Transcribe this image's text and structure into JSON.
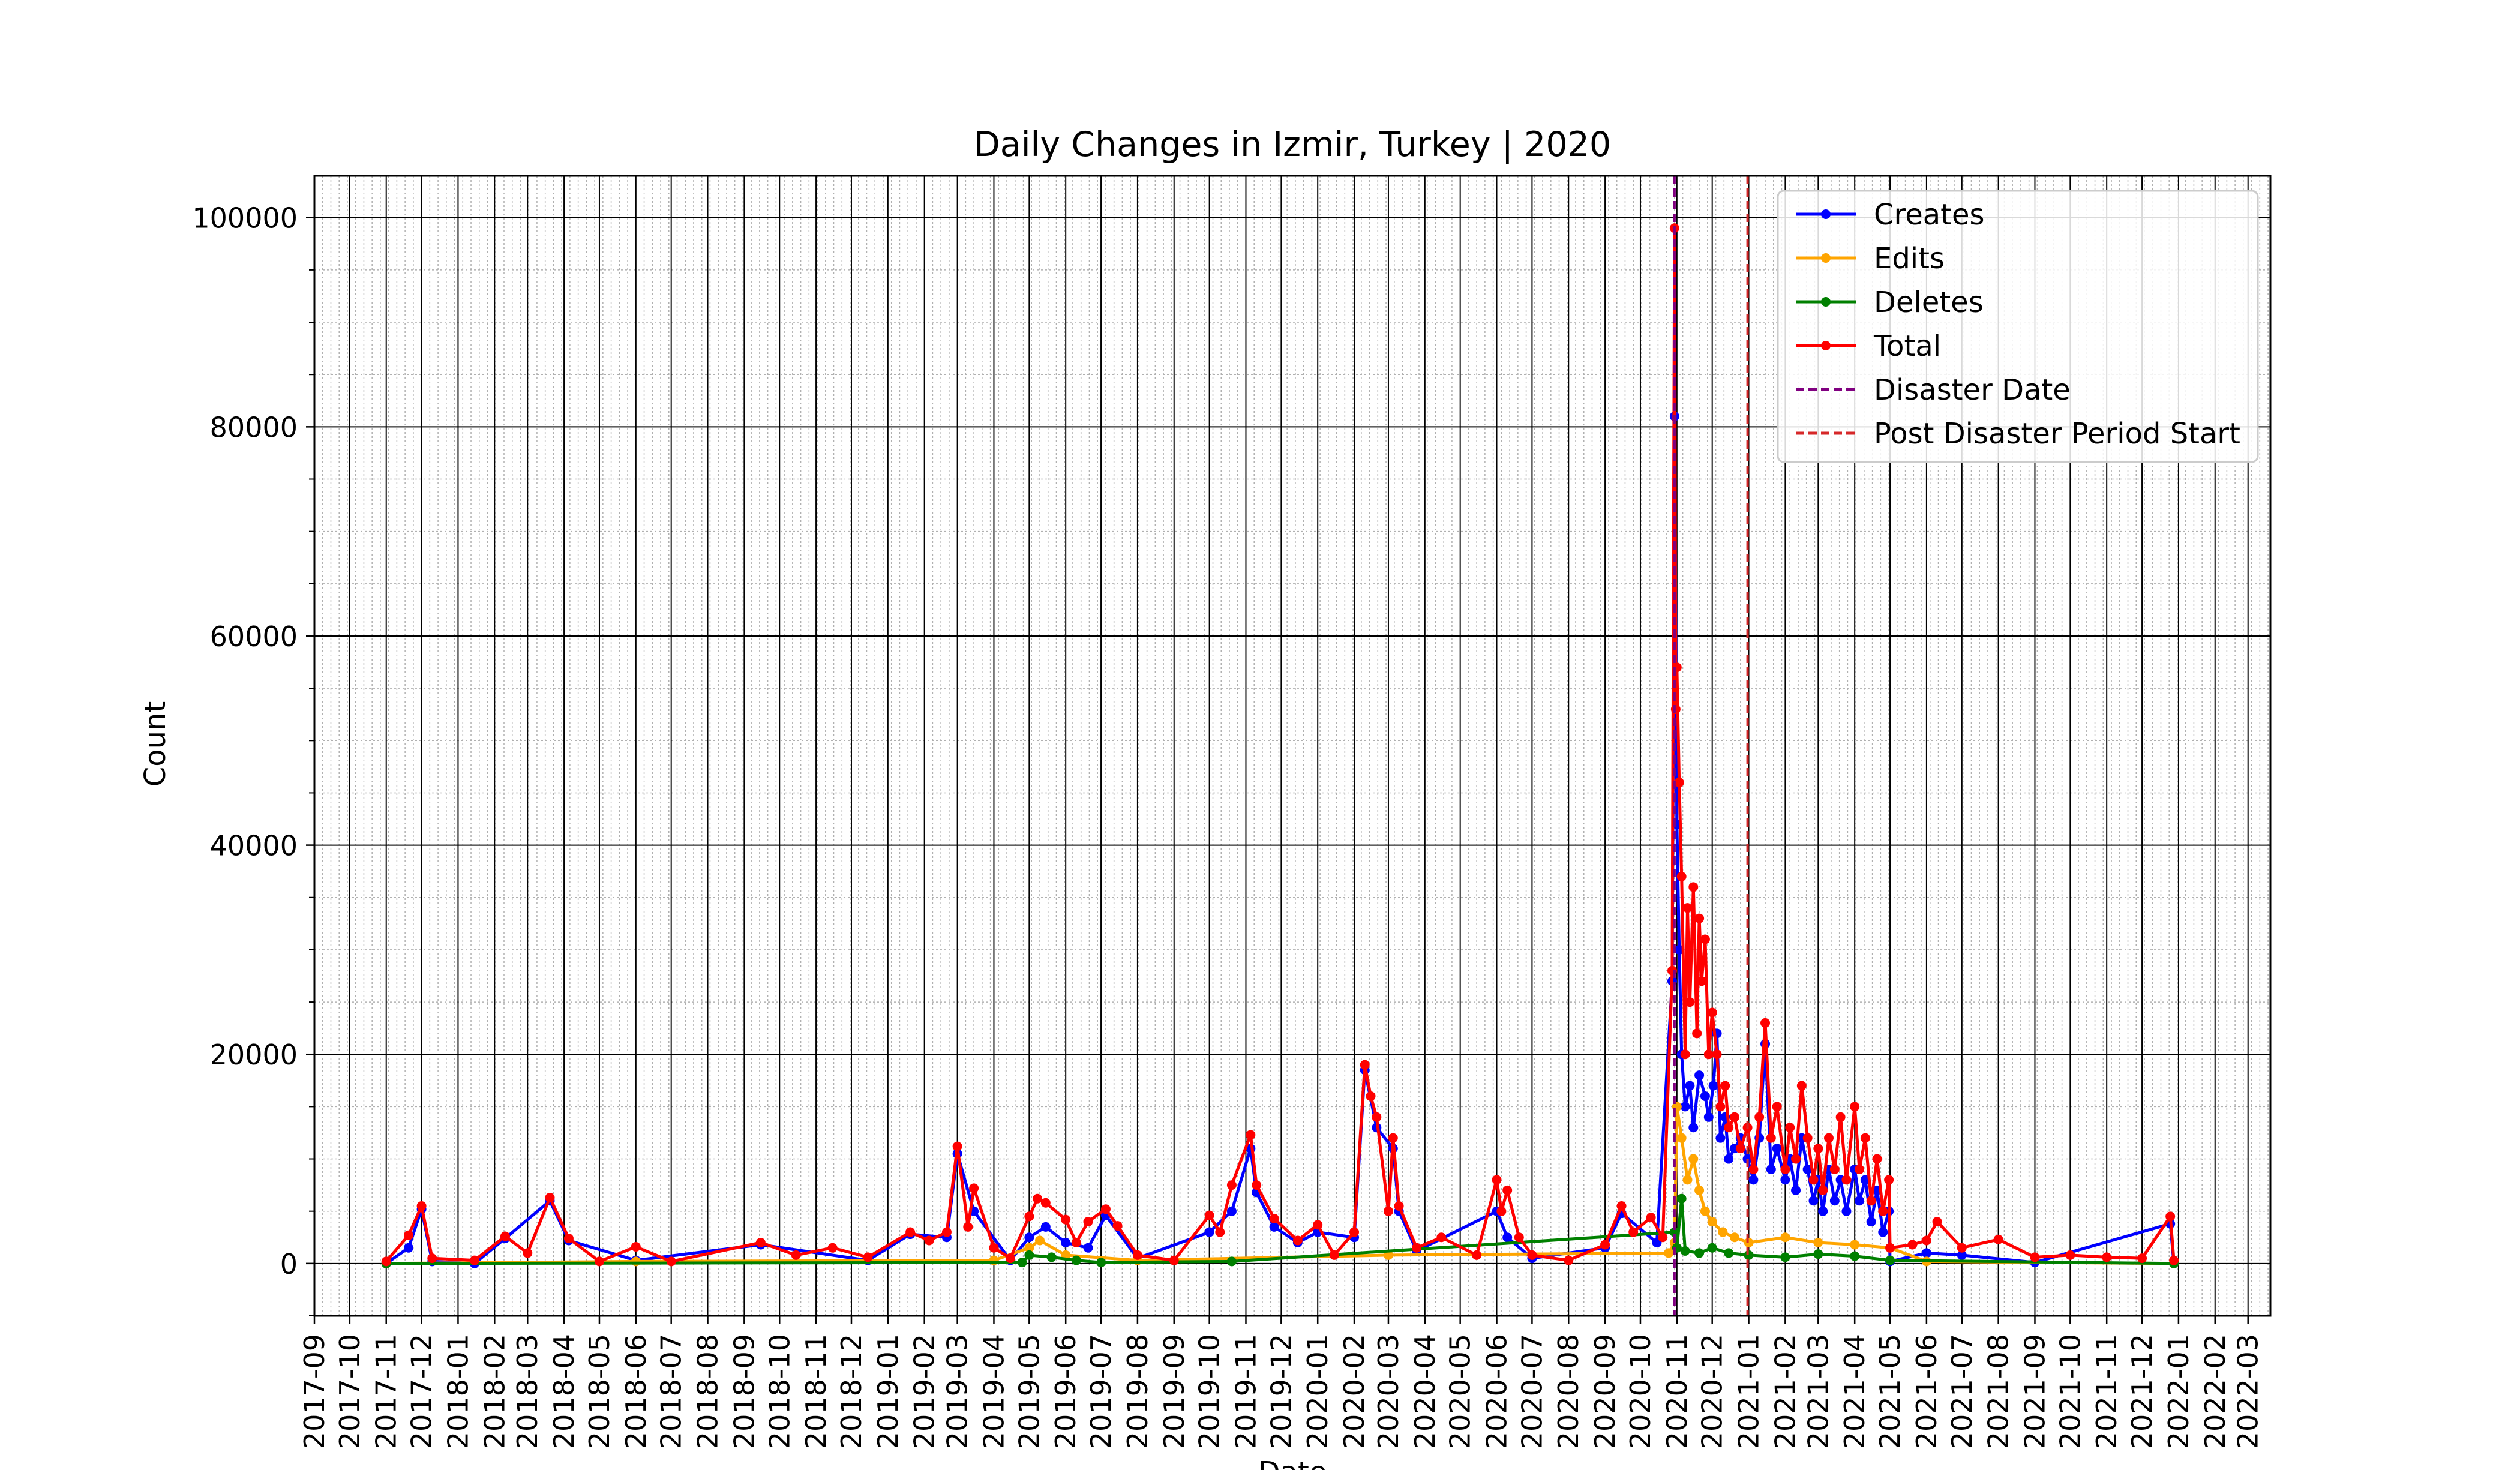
{
  "chart_data": {
    "type": "line",
    "title": "Daily Changes in Izmir, Turkey | 2020",
    "xlabel": "Date",
    "ylabel": "Count",
    "xlim": [
      "2017-09-01",
      "2022-03-20"
    ],
    "ylim": [
      -5000,
      104000
    ],
    "x_ticks": [
      "2017-09",
      "2017-10",
      "2017-11",
      "2017-12",
      "2018-01",
      "2018-02",
      "2018-03",
      "2018-04",
      "2018-05",
      "2018-06",
      "2018-07",
      "2018-08",
      "2018-09",
      "2018-10",
      "2018-11",
      "2018-12",
      "2019-01",
      "2019-02",
      "2019-03",
      "2019-04",
      "2019-05",
      "2019-06",
      "2019-07",
      "2019-08",
      "2019-09",
      "2019-10",
      "2019-11",
      "2019-12",
      "2020-01",
      "2020-02",
      "2020-03",
      "2020-04",
      "2020-05",
      "2020-06",
      "2020-07",
      "2020-08",
      "2020-09",
      "2020-10",
      "2020-11",
      "2020-12",
      "2021-01",
      "2021-02",
      "2021-03",
      "2021-04",
      "2021-05",
      "2021-06",
      "2021-07",
      "2021-08",
      "2021-09",
      "2021-10",
      "2021-11",
      "2021-12",
      "2022-01",
      "2022-02",
      "2022-03"
    ],
    "y_ticks": [
      0,
      20000,
      40000,
      60000,
      80000,
      100000
    ],
    "grid": true,
    "legend_position": "top-right",
    "vlines": [
      {
        "name": "Disaster Date",
        "x": "2020-10-30",
        "color": "#800080",
        "style": "dashed"
      },
      {
        "name": "Post Disaster Period Start",
        "x": "2020-12-31",
        "color": "#d62728",
        "style": "dashed"
      }
    ],
    "series": [
      {
        "name": "Creates",
        "color": "#0000ff",
        "points": [
          [
            "2017-11-01",
            0
          ],
          [
            "2017-11-20",
            1500
          ],
          [
            "2017-12-01",
            5200
          ],
          [
            "2017-12-10",
            200
          ],
          [
            "2018-01-15",
            0
          ],
          [
            "2018-02-10",
            2400
          ],
          [
            "2018-03-20",
            6000
          ],
          [
            "2018-04-05",
            2200
          ],
          [
            "2018-06-01",
            300
          ],
          [
            "2018-09-15",
            1800
          ],
          [
            "2018-12-15",
            300
          ],
          [
            "2019-01-20",
            2800
          ],
          [
            "2019-02-20",
            2500
          ],
          [
            "2019-03-01",
            10500
          ],
          [
            "2019-03-15",
            5000
          ],
          [
            "2019-04-15",
            300
          ],
          [
            "2019-05-01",
            2500
          ],
          [
            "2019-05-15",
            3500
          ],
          [
            "2019-06-01",
            2000
          ],
          [
            "2019-06-20",
            1500
          ],
          [
            "2019-07-05",
            4600
          ],
          [
            "2019-08-01",
            500
          ],
          [
            "2019-10-01",
            3000
          ],
          [
            "2019-10-20",
            5000
          ],
          [
            "2019-11-05",
            11000
          ],
          [
            "2019-11-10",
            6800
          ],
          [
            "2019-11-25",
            3500
          ],
          [
            "2019-12-15",
            2000
          ],
          [
            "2020-01-01",
            3000
          ],
          [
            "2020-02-01",
            2500
          ],
          [
            "2020-02-10",
            18500
          ],
          [
            "2020-02-20",
            13000
          ],
          [
            "2020-03-05",
            11000
          ],
          [
            "2020-03-10",
            5000
          ],
          [
            "2020-03-25",
            1200
          ],
          [
            "2020-06-01",
            5000
          ],
          [
            "2020-06-10",
            2500
          ],
          [
            "2020-07-01",
            500
          ],
          [
            "2020-09-01",
            1500
          ],
          [
            "2020-09-15",
            4800
          ],
          [
            "2020-10-15",
            2000
          ],
          [
            "2020-10-28",
            27000
          ],
          [
            "2020-10-30",
            81000
          ],
          [
            "2020-11-01",
            42000
          ],
          [
            "2020-11-03",
            30000
          ],
          [
            "2020-11-05",
            20000
          ],
          [
            "2020-11-08",
            15000
          ],
          [
            "2020-11-12",
            17000
          ],
          [
            "2020-11-15",
            13000
          ],
          [
            "2020-11-20",
            18000
          ],
          [
            "2020-11-25",
            16000
          ],
          [
            "2020-11-28",
            14000
          ],
          [
            "2020-12-02",
            17000
          ],
          [
            "2020-12-05",
            22000
          ],
          [
            "2020-12-08",
            12000
          ],
          [
            "2020-12-12",
            14000
          ],
          [
            "2020-12-15",
            10000
          ],
          [
            "2020-12-20",
            11000
          ],
          [
            "2020-12-25",
            12000
          ],
          [
            "2020-12-31",
            10000
          ],
          [
            "2021-01-05",
            8000
          ],
          [
            "2021-01-10",
            12000
          ],
          [
            "2021-01-15",
            21000
          ],
          [
            "2021-01-20",
            9000
          ],
          [
            "2021-01-25",
            11000
          ],
          [
            "2021-02-01",
            8000
          ],
          [
            "2021-02-05",
            10000
          ],
          [
            "2021-02-10",
            7000
          ],
          [
            "2021-02-15",
            12000
          ],
          [
            "2021-02-20",
            9000
          ],
          [
            "2021-02-25",
            6000
          ],
          [
            "2021-03-01",
            8000
          ],
          [
            "2021-03-05",
            5000
          ],
          [
            "2021-03-10",
            9000
          ],
          [
            "2021-03-15",
            6000
          ],
          [
            "2021-03-20",
            8000
          ],
          [
            "2021-03-25",
            5000
          ],
          [
            "2021-04-01",
            9000
          ],
          [
            "2021-04-05",
            6000
          ],
          [
            "2021-04-10",
            8000
          ],
          [
            "2021-04-15",
            4000
          ],
          [
            "2021-04-20",
            7000
          ],
          [
            "2021-04-25",
            3000
          ],
          [
            "2021-04-30",
            5000
          ],
          [
            "2021-05-01",
            200
          ],
          [
            "2021-06-01",
            1000
          ],
          [
            "2021-07-01",
            800
          ],
          [
            "2021-09-01",
            100
          ],
          [
            "2021-12-25",
            3800
          ],
          [
            "2021-12-28",
            0
          ]
        ]
      },
      {
        "name": "Edits",
        "color": "#ffa500",
        "points": [
          [
            "2017-11-01",
            0
          ],
          [
            "2018-06-01",
            200
          ],
          [
            "2019-04-01",
            300
          ],
          [
            "2019-05-01",
            1500
          ],
          [
            "2019-05-10",
            2200
          ],
          [
            "2019-06-01",
            800
          ],
          [
            "2019-08-01",
            300
          ],
          [
            "2020-03-01",
            800
          ],
          [
            "2020-10-25",
            1000
          ],
          [
            "2020-10-30",
            2000
          ],
          [
            "2020-11-01",
            15000
          ],
          [
            "2020-11-05",
            12000
          ],
          [
            "2020-11-10",
            8000
          ],
          [
            "2020-11-15",
            10000
          ],
          [
            "2020-11-20",
            7000
          ],
          [
            "2020-11-25",
            5000
          ],
          [
            "2020-12-01",
            4000
          ],
          [
            "2020-12-10",
            3000
          ],
          [
            "2020-12-20",
            2500
          ],
          [
            "2021-01-01",
            2000
          ],
          [
            "2021-02-01",
            2500
          ],
          [
            "2021-03-01",
            2000
          ],
          [
            "2021-04-01",
            1800
          ],
          [
            "2021-05-01",
            1500
          ],
          [
            "2021-06-01",
            200
          ],
          [
            "2021-12-28",
            0
          ]
        ]
      },
      {
        "name": "Deletes",
        "color": "#008000",
        "points": [
          [
            "2017-11-01",
            0
          ],
          [
            "2019-04-25",
            100
          ],
          [
            "2019-05-01",
            800
          ],
          [
            "2019-05-20",
            600
          ],
          [
            "2019-06-10",
            300
          ],
          [
            "2019-07-01",
            100
          ],
          [
            "2019-10-20",
            200
          ],
          [
            "2020-10-30",
            3000
          ],
          [
            "2020-11-01",
            1500
          ],
          [
            "2020-11-05",
            6200
          ],
          [
            "2020-11-08",
            1200
          ],
          [
            "2020-11-20",
            1000
          ],
          [
            "2020-12-01",
            1500
          ],
          [
            "2020-12-15",
            1000
          ],
          [
            "2021-01-01",
            800
          ],
          [
            "2021-02-01",
            600
          ],
          [
            "2021-03-01",
            900
          ],
          [
            "2021-04-01",
            700
          ],
          [
            "2021-05-01",
            300
          ],
          [
            "2021-12-28",
            0
          ]
        ]
      },
      {
        "name": "Total",
        "color": "#ff0000",
        "points": [
          [
            "2017-11-01",
            200
          ],
          [
            "2017-11-20",
            2700
          ],
          [
            "2017-12-01",
            5500
          ],
          [
            "2017-12-10",
            500
          ],
          [
            "2018-01-15",
            300
          ],
          [
            "2018-02-10",
            2600
          ],
          [
            "2018-03-01",
            1000
          ],
          [
            "2018-03-20",
            6300
          ],
          [
            "2018-04-05",
            2400
          ],
          [
            "2018-05-01",
            200
          ],
          [
            "2018-06-01",
            1600
          ],
          [
            "2018-07-01",
            200
          ],
          [
            "2018-09-15",
            2000
          ],
          [
            "2018-10-15",
            800
          ],
          [
            "2018-11-15",
            1500
          ],
          [
            "2018-12-15",
            600
          ],
          [
            "2019-01-20",
            3000
          ],
          [
            "2019-02-05",
            2200
          ],
          [
            "2019-02-20",
            3000
          ],
          [
            "2019-03-01",
            11200
          ],
          [
            "2019-03-10",
            3500
          ],
          [
            "2019-03-15",
            7200
          ],
          [
            "2019-04-01",
            1500
          ],
          [
            "2019-04-15",
            500
          ],
          [
            "2019-05-01",
            4500
          ],
          [
            "2019-05-08",
            6200
          ],
          [
            "2019-05-15",
            5800
          ],
          [
            "2019-06-01",
            4200
          ],
          [
            "2019-06-10",
            2000
          ],
          [
            "2019-06-20",
            4000
          ],
          [
            "2019-07-05",
            5200
          ],
          [
            "2019-07-15",
            3600
          ],
          [
            "2019-08-01",
            800
          ],
          [
            "2019-09-01",
            300
          ],
          [
            "2019-10-01",
            4600
          ],
          [
            "2019-10-10",
            3000
          ],
          [
            "2019-10-20",
            7500
          ],
          [
            "2019-11-05",
            12300
          ],
          [
            "2019-11-10",
            7500
          ],
          [
            "2019-11-25",
            4300
          ],
          [
            "2019-12-15",
            2200
          ],
          [
            "2020-01-01",
            3700
          ],
          [
            "2020-01-15",
            800
          ],
          [
            "2020-02-01",
            3000
          ],
          [
            "2020-02-10",
            19000
          ],
          [
            "2020-02-15",
            16000
          ],
          [
            "2020-02-20",
            14000
          ],
          [
            "2020-03-01",
            5000
          ],
          [
            "2020-03-05",
            12000
          ],
          [
            "2020-03-10",
            5500
          ],
          [
            "2020-03-25",
            1500
          ],
          [
            "2020-04-15",
            2500
          ],
          [
            "2020-05-15",
            800
          ],
          [
            "2020-06-01",
            8000
          ],
          [
            "2020-06-05",
            5000
          ],
          [
            "2020-06-10",
            7000
          ],
          [
            "2020-06-20",
            2500
          ],
          [
            "2020-07-01",
            800
          ],
          [
            "2020-08-01",
            300
          ],
          [
            "2020-09-01",
            1800
          ],
          [
            "2020-09-15",
            5500
          ],
          [
            "2020-09-25",
            3000
          ],
          [
            "2020-10-10",
            4400
          ],
          [
            "2020-10-20",
            2500
          ],
          [
            "2020-10-28",
            28000
          ],
          [
            "2020-10-30",
            99000
          ],
          [
            "2020-10-31",
            53000
          ],
          [
            "2020-11-01",
            57000
          ],
          [
            "2020-11-03",
            46000
          ],
          [
            "2020-11-05",
            37000
          ],
          [
            "2020-11-08",
            20000
          ],
          [
            "2020-11-10",
            34000
          ],
          [
            "2020-11-12",
            25000
          ],
          [
            "2020-11-15",
            36000
          ],
          [
            "2020-11-18",
            22000
          ],
          [
            "2020-11-20",
            33000
          ],
          [
            "2020-11-22",
            27000
          ],
          [
            "2020-11-25",
            31000
          ],
          [
            "2020-11-28",
            20000
          ],
          [
            "2020-12-01",
            24000
          ],
          [
            "2020-12-05",
            20000
          ],
          [
            "2020-12-08",
            15000
          ],
          [
            "2020-12-12",
            17000
          ],
          [
            "2020-12-15",
            13000
          ],
          [
            "2020-12-20",
            14000
          ],
          [
            "2020-12-25",
            11000
          ],
          [
            "2020-12-31",
            13000
          ],
          [
            "2021-01-05",
            9000
          ],
          [
            "2021-01-10",
            14000
          ],
          [
            "2021-01-15",
            23000
          ],
          [
            "2021-01-20",
            12000
          ],
          [
            "2021-01-25",
            15000
          ],
          [
            "2021-02-01",
            9000
          ],
          [
            "2021-02-05",
            13000
          ],
          [
            "2021-02-10",
            10000
          ],
          [
            "2021-02-15",
            17000
          ],
          [
            "2021-02-20",
            12000
          ],
          [
            "2021-02-25",
            8000
          ],
          [
            "2021-03-01",
            11000
          ],
          [
            "2021-03-05",
            7000
          ],
          [
            "2021-03-10",
            12000
          ],
          [
            "2021-03-15",
            9000
          ],
          [
            "2021-03-20",
            14000
          ],
          [
            "2021-03-25",
            8000
          ],
          [
            "2021-04-01",
            15000
          ],
          [
            "2021-04-05",
            9000
          ],
          [
            "2021-04-10",
            12000
          ],
          [
            "2021-04-15",
            6000
          ],
          [
            "2021-04-20",
            10000
          ],
          [
            "2021-04-25",
            5000
          ],
          [
            "2021-04-30",
            8000
          ],
          [
            "2021-05-01",
            1500
          ],
          [
            "2021-05-20",
            1800
          ],
          [
            "2021-06-01",
            2200
          ],
          [
            "2021-06-10",
            4000
          ],
          [
            "2021-07-01",
            1500
          ],
          [
            "2021-08-01",
            2300
          ],
          [
            "2021-09-01",
            600
          ],
          [
            "2021-10-01",
            800
          ],
          [
            "2021-11-01",
            600
          ],
          [
            "2021-12-01",
            500
          ],
          [
            "2021-12-25",
            4500
          ],
          [
            "2021-12-28",
            300
          ]
        ]
      }
    ]
  }
}
